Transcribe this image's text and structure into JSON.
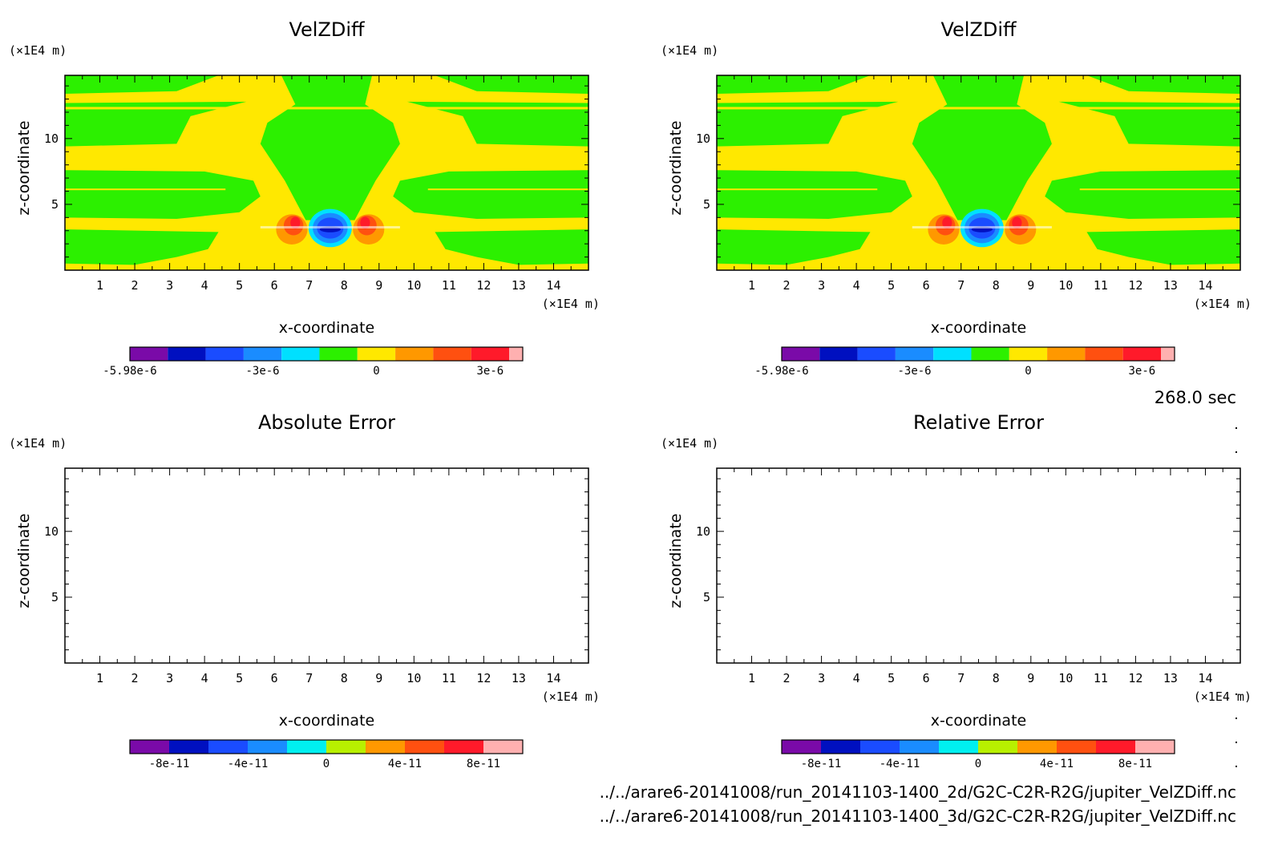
{
  "time_label": "268.0 sec",
  "file_paths": [
    "../../arare6-20141008/run_20141103-1400_2d/G2C-C2R-R2G/jupiter_VelZDiff.nc",
    "../../arare6-20141008/run_20141103-1400_3d/G2C-C2R-R2G/jupiter_VelZDiff.nc"
  ],
  "colors": {
    "field_bg": "#ffe800",
    "field_main": "#2cf000"
  },
  "chart_data": [
    {
      "type": "heatmap",
      "title": "VelZDiff",
      "xlabel": "x-coordinate",
      "ylabel": "z-coordinate",
      "x_unit": "(×1E4 m)",
      "y_unit": "(×1E4 m)",
      "xlim": [
        0,
        15
      ],
      "ylim": [
        0,
        14.8
      ],
      "x_ticks": [
        "1",
        "2",
        "3",
        "4",
        "5",
        "6",
        "7",
        "8",
        "9",
        "10",
        "11",
        "12",
        "13",
        "14"
      ],
      "y_ticks": [
        "5",
        "10"
      ],
      "filled": true,
      "colorbar": {
        "colors": [
          "#7a0aa8",
          "#0010c0",
          "#1a4cff",
          "#1a8cff",
          "#00e0ff",
          "#2cf000",
          "#ffe800",
          "#ff9800",
          "#ff5010",
          "#ff1a2a",
          "#ffb0b0"
        ],
        "labels": [
          "-5.98e-6",
          "-3e-6",
          "0",
          "3e-6"
        ],
        "label_steps": [
          0,
          3.5,
          6.5,
          9.5
        ]
      }
    },
    {
      "type": "heatmap",
      "title": "VelZDiff",
      "xlabel": "x-coordinate",
      "ylabel": "z-coordinate",
      "x_unit": "(×1E4 m)",
      "y_unit": "(×1E4 m)",
      "xlim": [
        0,
        15
      ],
      "ylim": [
        0,
        14.8
      ],
      "x_ticks": [
        "1",
        "2",
        "3",
        "4",
        "5",
        "6",
        "7",
        "8",
        "9",
        "10",
        "11",
        "12",
        "13",
        "14"
      ],
      "y_ticks": [
        "5",
        "10"
      ],
      "filled": true,
      "colorbar": {
        "colors": [
          "#7a0aa8",
          "#0010c0",
          "#1a4cff",
          "#1a8cff",
          "#00e0ff",
          "#2cf000",
          "#ffe800",
          "#ff9800",
          "#ff5010",
          "#ff1a2a",
          "#ffb0b0"
        ],
        "labels": [
          "-5.98e-6",
          "-3e-6",
          "0",
          "3e-6"
        ],
        "label_steps": [
          0,
          3.5,
          6.5,
          9.5
        ]
      }
    },
    {
      "type": "heatmap",
      "title": "Absolute Error",
      "xlabel": "x-coordinate",
      "ylabel": "z-coordinate",
      "x_unit": "(×1E4 m)",
      "y_unit": "(×1E4 m)",
      "xlim": [
        0,
        15
      ],
      "ylim": [
        0,
        14.8
      ],
      "x_ticks": [
        "1",
        "2",
        "3",
        "4",
        "5",
        "6",
        "7",
        "8",
        "9",
        "10",
        "11",
        "12",
        "13",
        "14"
      ],
      "y_ticks": [
        "5",
        "10"
      ],
      "filled": false,
      "colorbar": {
        "colors": [
          "#7a0aa8",
          "#0010c0",
          "#1a4cff",
          "#1a8cff",
          "#00f0f0",
          "#b8f000",
          "#ff9800",
          "#ff5010",
          "#ff1a2a",
          "#ffb0b0"
        ],
        "labels": [
          "-8e-11",
          "-4e-11",
          "0",
          "4e-11",
          "8e-11"
        ],
        "label_steps": [
          1,
          3,
          5,
          7,
          9
        ]
      }
    },
    {
      "type": "heatmap",
      "title": "Relative Error",
      "xlabel": "x-coordinate",
      "ylabel": "z-coordinate",
      "x_unit": "(×1E4 m)",
      "y_unit": "(×1E4 m)",
      "xlim": [
        0,
        15
      ],
      "ylim": [
        0,
        14.8
      ],
      "x_ticks": [
        "1",
        "2",
        "3",
        "4",
        "5",
        "6",
        "7",
        "8",
        "9",
        "10",
        "11",
        "12",
        "13",
        "14"
      ],
      "y_ticks": [
        "5",
        "10"
      ],
      "filled": false,
      "colorbar": {
        "colors": [
          "#7a0aa8",
          "#0010c0",
          "#1a4cff",
          "#1a8cff",
          "#00f0f0",
          "#b8f000",
          "#ff9800",
          "#ff5010",
          "#ff1a2a",
          "#ffb0b0"
        ],
        "labels": [
          "-8e-11",
          "-4e-11",
          "0",
          "4e-11",
          "8e-11"
        ],
        "label_steps": [
          1,
          3,
          5,
          7,
          9
        ]
      }
    }
  ]
}
